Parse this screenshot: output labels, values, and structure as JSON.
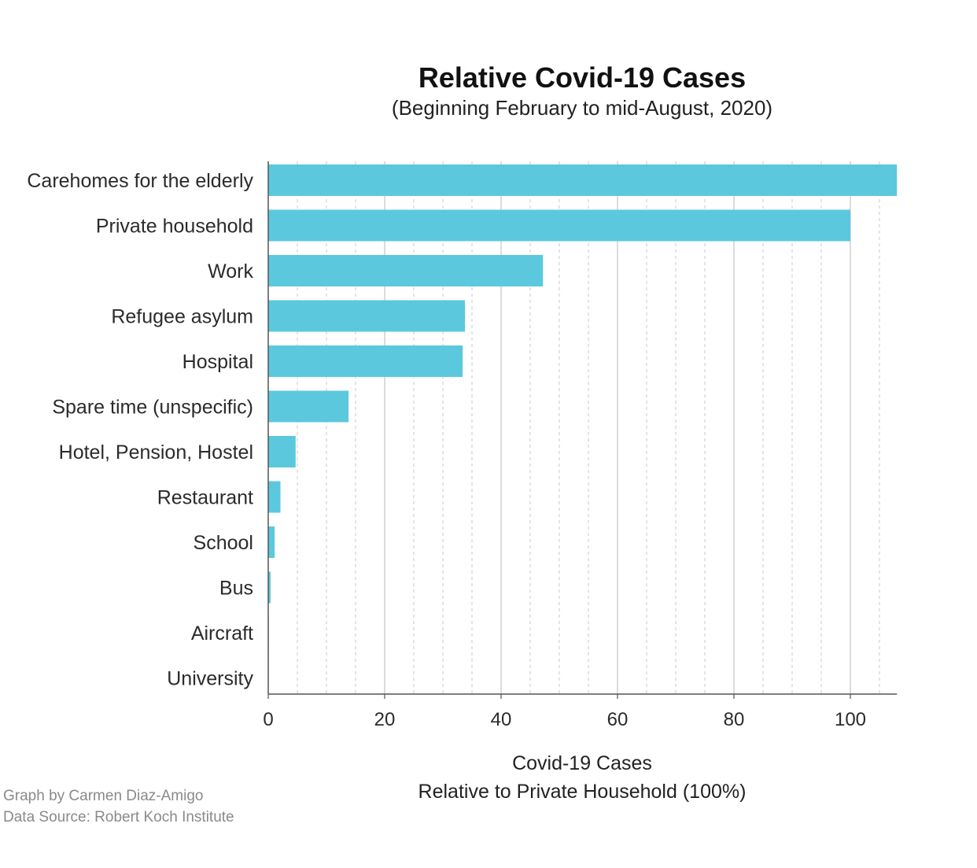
{
  "chart_data": {
    "type": "bar",
    "orientation": "horizontal",
    "title": "Relative Covid-19 Cases",
    "subtitle": "(Beginning February to mid-August, 2020)",
    "xlabel_line1": "Covid-19 Cases",
    "xlabel_line2": "Relative to Private Household (100%)",
    "ylabel": "",
    "categories": [
      "Carehomes for the elderly",
      "Private household",
      "Work",
      "Refugee asylum",
      "Hospital",
      "Spare time (unspecific)",
      "Hotel, Pension, Hostel",
      "Restaurant",
      "School",
      "Bus",
      "Aircraft",
      "University"
    ],
    "values": [
      108,
      100,
      47.2,
      33.8,
      33.4,
      13.8,
      4.7,
      2.1,
      1.1,
      0.4,
      0.1,
      0
    ],
    "xlim": [
      0,
      108
    ],
    "xticks": [
      0,
      20,
      40,
      60,
      80,
      100
    ],
    "minor_gridlines_every": 5,
    "grid": true,
    "bar_color": "#5bc8dd"
  },
  "credits": {
    "line1": "Graph by Carmen Diaz-Amigo",
    "line2": "Data Source: Robert Koch Institute"
  }
}
